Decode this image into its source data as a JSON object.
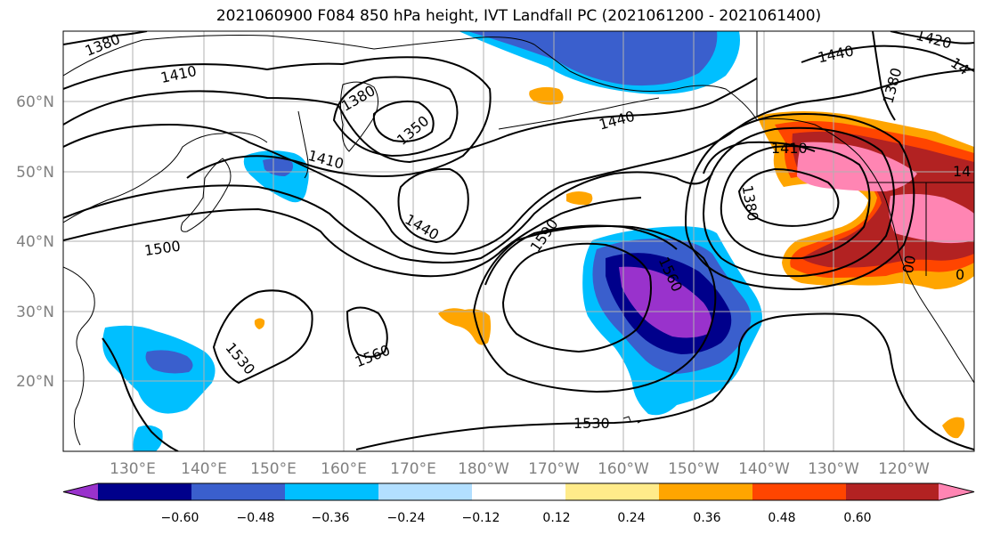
{
  "title": "2021060900 F084 850 hPa height, IVT Landfall PC (2021061200 - 2021061400)",
  "map": {
    "lat_labels": [
      "60°N",
      "50°N",
      "40°N",
      "30°N",
      "20°N"
    ],
    "lon_labels": [
      "130°E",
      "140°E",
      "150°E",
      "160°E",
      "170°E",
      "180°W",
      "170°W",
      "160°W",
      "150°W",
      "140°W",
      "130°W",
      "120°W"
    ],
    "contour_labels": [
      "1380",
      "1410",
      "1380",
      "1350",
      "1410",
      "1440",
      "1440",
      "1380",
      "1410",
      "1380",
      "1500",
      "1440",
      "1590",
      "1560",
      "1530",
      "1560",
      "1530",
      "14",
      "14",
      "1420",
      "00",
      "0"
    ],
    "colors": {
      "grid": "#b0b0b0",
      "tick_label": "#808080",
      "contour": "#000000"
    }
  },
  "colorbar": {
    "ticks": [
      "−0.60",
      "−0.48",
      "−0.36",
      "−0.24",
      "−0.12",
      "0.12",
      "0.24",
      "0.36",
      "0.48",
      "0.60"
    ],
    "colors": [
      "#9932cc",
      "#00008b",
      "#3a5fcd",
      "#00bfff",
      "#b2dfff",
      "#ffffff",
      "#ffeb8a",
      "#ffa500",
      "#ff4500",
      "#b22222",
      "#ff85b3"
    ]
  }
}
